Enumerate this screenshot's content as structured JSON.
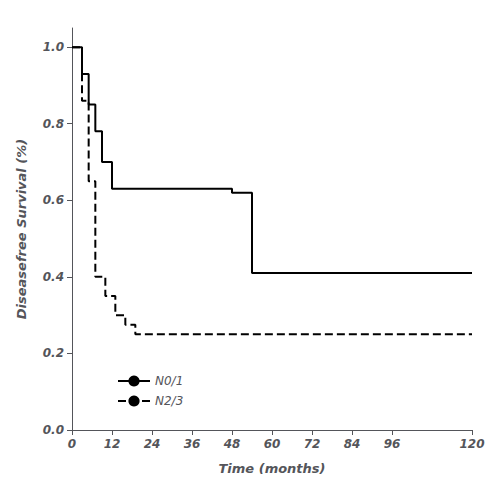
{
  "chart_data": {
    "type": "step",
    "xlabel": "Time (months)",
    "ylabel": "Diseasefree Survival (%)",
    "xlim": [
      0,
      120
    ],
    "ylim": [
      0.0,
      1.05
    ],
    "xticks": [
      0,
      12,
      24,
      36,
      48,
      60,
      72,
      84,
      96,
      120
    ],
    "yticks": [
      {
        "value": 0,
        "label": "0.0"
      },
      0.2,
      0.4,
      0.6,
      0.8,
      {
        "value": 1,
        "label": "1.0"
      }
    ],
    "grid": false,
    "legend": "lower left",
    "series": [
      {
        "name": "N0/1",
        "color": "#000000",
        "line_style": "solid",
        "x": [
          0,
          3,
          5,
          7,
          9,
          12,
          22,
          48,
          54,
          120
        ],
        "values": [
          1.0,
          0.93,
          0.85,
          0.78,
          0.7,
          0.63,
          0.63,
          0.62,
          0.41,
          0.41
        ]
      },
      {
        "name": "N2/3",
        "color": "#000000",
        "line_style": "dashed",
        "x": [
          0,
          3,
          5,
          7,
          10,
          13,
          16,
          19,
          22,
          120
        ],
        "values": [
          1.0,
          0.86,
          0.65,
          0.4,
          0.35,
          0.3,
          0.275,
          0.25,
          0.25,
          0.25
        ]
      }
    ]
  }
}
